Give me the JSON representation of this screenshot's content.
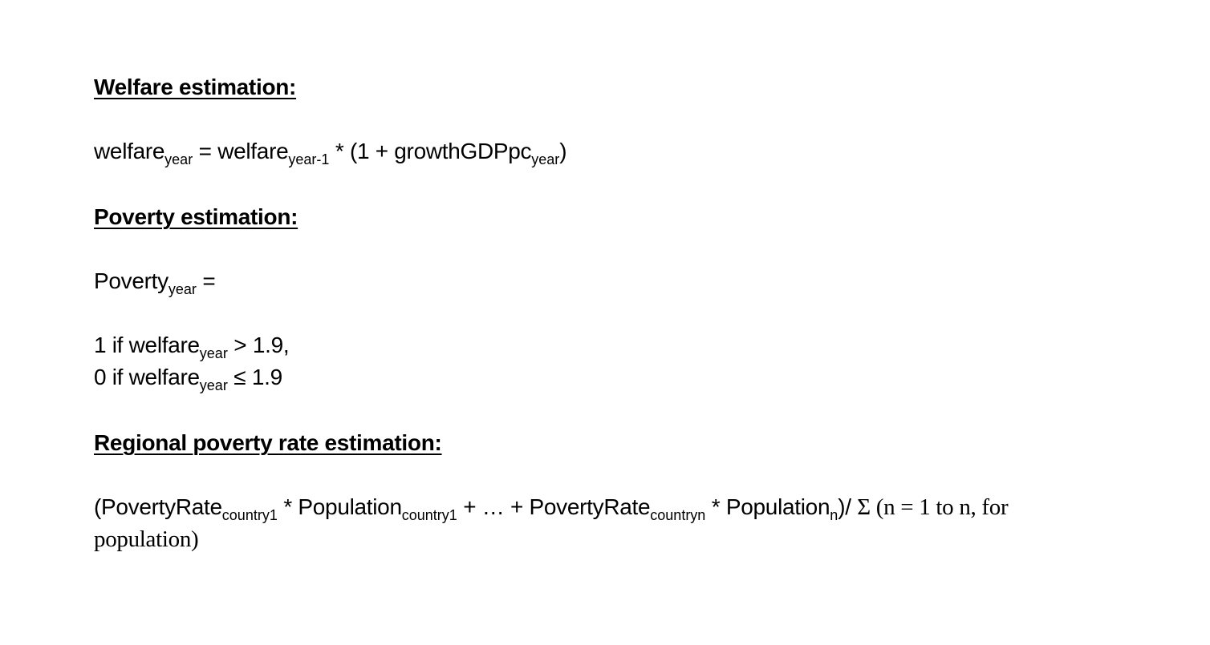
{
  "sections": {
    "welfare_heading": "Welfare estimation:",
    "poverty_heading": "Poverty estimation:",
    "regional_heading": "Regional poverty rate estimation:"
  },
  "welfare_eq": {
    "lhs": "welfare",
    "lhs_sub": "year",
    "eq": " = welfare",
    "prev_sub": "year-1",
    "mid": " * (1 + growthGDPpc",
    "growth_sub": "year",
    "close": ")"
  },
  "poverty_eq": {
    "lhs": "Poverty",
    "lhs_sub": "year",
    "eq": " ="
  },
  "cases": {
    "one_prefix": "1 if welfare",
    "one_sub": "year",
    "one_cond": " > 1.9,",
    "zero_prefix": "0 if welfare",
    "zero_sub": "year",
    "zero_cond": " ≤ 1.9"
  },
  "regional_eq": {
    "p1": "(PovertyRate",
    "s1": "country1",
    "p2": " * Population",
    "s2": "country1",
    "p3": " + … + PovertyRate",
    "s3": "countryn",
    "p4": " * Population",
    "s4": "n",
    "p5": ")/ ",
    "p6": "Σ (n = 1 to n, for",
    "p7": "population)"
  }
}
